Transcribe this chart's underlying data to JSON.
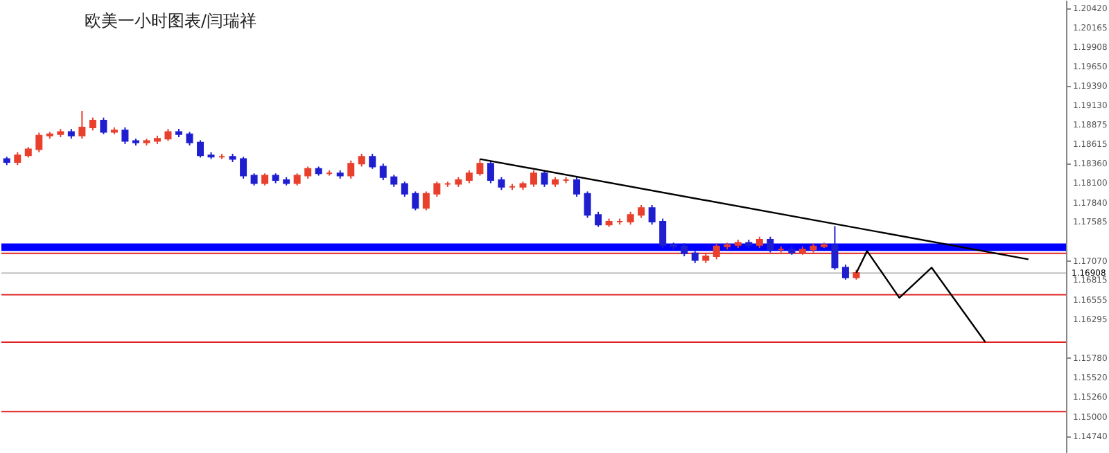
{
  "chart_data": {
    "type": "candlestick",
    "title": "欧美一小时图表/闫瑞祥",
    "categories": [
      null,
      null,
      null,
      null,
      null,
      null,
      null,
      null,
      null,
      null,
      null,
      null,
      null,
      null,
      null,
      null,
      null,
      null,
      null,
      null,
      null,
      null,
      null,
      null,
      null,
      null,
      null,
      null,
      null,
      null,
      null,
      null,
      null,
      null,
      null,
      null,
      null,
      null,
      null,
      null,
      null,
      null,
      null,
      null,
      null,
      null,
      null,
      null,
      null,
      null,
      null,
      null,
      null,
      null,
      null,
      null,
      null,
      null,
      null,
      null,
      null,
      null,
      null,
      null,
      null,
      null,
      null,
      null,
      null,
      null,
      null,
      null,
      null,
      null,
      null,
      null,
      null,
      null,
      null,
      null,
      null,
      null,
      null,
      null,
      null,
      null,
      null,
      null,
      null,
      null,
      null,
      null,
      null,
      null,
      null,
      null,
      null,
      null,
      null
    ],
    "ohlc": [
      [
        1.1842,
        1.1845,
        1.1834,
        1.1838
      ],
      [
        1.1838,
        1.1851,
        1.1834,
        1.1847
      ],
      [
        1.1847,
        1.1858,
        1.1844,
        1.1855
      ],
      [
        1.1855,
        1.1877,
        1.1851,
        1.1873
      ],
      [
        1.1873,
        1.1878,
        1.1869,
        1.1875
      ],
      [
        1.1875,
        1.1882,
        1.1871,
        1.1878
      ],
      [
        1.1878,
        1.1882,
        1.1869,
        1.1873
      ],
      [
        1.1873,
        1.1906,
        1.1869,
        1.1884
      ],
      [
        1.1884,
        1.1897,
        1.188,
        1.1893
      ],
      [
        1.1893,
        1.1897,
        1.1875,
        1.1878
      ],
      [
        1.1878,
        1.1884,
        1.1875,
        1.188
      ],
      [
        1.188,
        1.1884,
        1.1862,
        1.1866
      ],
      [
        1.1866,
        1.1869,
        1.186,
        1.1864
      ],
      [
        1.1864,
        1.1869,
        1.186,
        1.1866
      ],
      [
        1.1866,
        1.1873,
        1.1862,
        1.1869
      ],
      [
        1.1869,
        1.1882,
        1.1866,
        1.1878
      ],
      [
        1.1878,
        1.1882,
        1.1871,
        1.1875
      ],
      [
        1.1875,
        1.1878,
        1.186,
        1.1864
      ],
      [
        1.1864,
        1.1867,
        1.1844,
        1.1847
      ],
      [
        1.1847,
        1.1851,
        1.1842,
        1.1845
      ],
      [
        1.1845,
        1.1849,
        1.1842,
        1.1845
      ],
      [
        1.1845,
        1.1849,
        1.1838,
        1.1842
      ],
      [
        1.1842,
        1.1845,
        1.1816,
        1.182
      ],
      [
        1.182,
        1.1823,
        1.1807,
        1.181
      ],
      [
        1.181,
        1.1823,
        1.1807,
        1.182
      ],
      [
        1.182,
        1.1823,
        1.181,
        1.1814
      ],
      [
        1.1814,
        1.1818,
        1.1807,
        1.181
      ],
      [
        1.181,
        1.1823,
        1.1807,
        1.182
      ],
      [
        1.182,
        1.1832,
        1.1816,
        1.1829
      ],
      [
        1.1829,
        1.1832,
        1.182,
        1.1823
      ],
      [
        1.1823,
        1.1827,
        1.182,
        1.1823
      ],
      [
        1.1823,
        1.1827,
        1.1816,
        1.182
      ],
      [
        1.182,
        1.184,
        1.1816,
        1.1836
      ],
      [
        1.1836,
        1.1849,
        1.1832,
        1.1845
      ],
      [
        1.1845,
        1.1849,
        1.1829,
        1.1832
      ],
      [
        1.1832,
        1.1836,
        1.1814,
        1.1818
      ],
      [
        1.1818,
        1.1821,
        1.1805,
        1.1809
      ],
      [
        1.1809,
        1.1812,
        1.1792,
        1.1796
      ],
      [
        1.1796,
        1.1799,
        1.1774,
        1.1777
      ],
      [
        1.1777,
        1.1799,
        1.1774,
        1.1796
      ],
      [
        1.1796,
        1.1812,
        1.1792,
        1.1809
      ],
      [
        1.1809,
        1.1812,
        1.1805,
        1.1809
      ],
      [
        1.1809,
        1.1818,
        1.1805,
        1.1814
      ],
      [
        1.1814,
        1.1827,
        1.181,
        1.1823
      ],
      [
        1.1823,
        1.1842,
        1.182,
        1.1836
      ],
      [
        1.1836,
        1.184,
        1.181,
        1.1814
      ],
      [
        1.1814,
        1.1818,
        1.1801,
        1.1805
      ],
      [
        1.1805,
        1.1809,
        1.1801,
        1.1805
      ],
      [
        1.1805,
        1.1812,
        1.1801,
        1.1809
      ],
      [
        1.1809,
        1.1827,
        1.1805,
        1.1823
      ],
      [
        1.1823,
        1.1827,
        1.1805,
        1.1809
      ],
      [
        1.1809,
        1.1818,
        1.1805,
        1.1814
      ],
      [
        1.1814,
        1.1818,
        1.181,
        1.1814
      ],
      [
        1.1814,
        1.1818,
        1.1792,
        1.1796
      ],
      [
        1.1796,
        1.1799,
        1.1764,
        1.1768
      ],
      [
        1.1768,
        1.1772,
        1.1752,
        1.1755
      ],
      [
        1.1755,
        1.1763,
        1.1752,
        1.1759
      ],
      [
        1.1759,
        1.1763,
        1.1755,
        1.1759
      ],
      [
        1.1759,
        1.1772,
        1.1755,
        1.1768
      ],
      [
        1.1768,
        1.1781,
        1.1764,
        1.1777
      ],
      [
        1.1777,
        1.1781,
        1.1755,
        1.1759
      ],
      [
        1.1759,
        1.1763,
        1.1724,
        1.1728
      ],
      [
        1.1728,
        1.1731,
        1.1722,
        1.1726
      ],
      [
        1.1726,
        1.173,
        1.1713,
        1.1717
      ],
      [
        1.1717,
        1.172,
        1.1704,
        1.1708
      ],
      [
        1.1708,
        1.1717,
        1.1704,
        1.1713
      ],
      [
        1.1713,
        1.173,
        1.1709,
        1.1726
      ],
      [
        1.1726,
        1.1731,
        1.1722,
        1.1728
      ],
      [
        1.1728,
        1.1735,
        1.1724,
        1.1731
      ],
      [
        1.1731,
        1.1735,
        1.1724,
        1.1728
      ],
      [
        1.1728,
        1.1739,
        1.1724,
        1.1735
      ],
      [
        1.1735,
        1.1739,
        1.1718,
        1.1722
      ],
      [
        1.1722,
        1.1726,
        1.1718,
        1.1722
      ],
      [
        1.1722,
        1.1726,
        1.1715,
        1.1718
      ],
      [
        1.1718,
        1.1726,
        1.1715,
        1.1722
      ],
      [
        1.1722,
        1.173,
        1.1718,
        1.1726
      ],
      [
        1.1726,
        1.1731,
        1.1724,
        1.1728
      ],
      [
        1.1728,
        1.1753,
        1.1695,
        1.1698
      ],
      [
        1.1698,
        1.1702,
        1.1682,
        1.1685
      ],
      [
        1.1685,
        1.1695,
        1.1682,
        1.1691
      ],
      null,
      null,
      null,
      null,
      null,
      null,
      null,
      null,
      null,
      null,
      null,
      null,
      null,
      null,
      null,
      null,
      null,
      null,
      null
    ],
    "colors": [
      "#1f1fd0",
      "#e8402c",
      "#e8402c",
      "#e8402c",
      "#e8402c",
      "#e8402c",
      "#1f1fd0",
      "#e8402c",
      "#e8402c",
      "#1f1fd0",
      "#e8402c",
      "#1f1fd0",
      "#1f1fd0",
      "#e8402c",
      "#e8402c",
      "#e8402c",
      "#1f1fd0",
      "#1f1fd0",
      "#1f1fd0",
      "#1f1fd0",
      "#e8402c",
      "#1f1fd0",
      "#1f1fd0",
      "#1f1fd0",
      "#e8402c",
      "#1f1fd0",
      "#1f1fd0",
      "#e8402c",
      "#e8402c",
      "#1f1fd0",
      "#e8402c",
      "#1f1fd0",
      "#e8402c",
      "#e8402c",
      "#1f1fd0",
      "#1f1fd0",
      "#1f1fd0",
      "#1f1fd0",
      "#1f1fd0",
      "#e8402c",
      "#e8402c",
      "#e8402c",
      "#e8402c",
      "#e8402c",
      "#e8402c",
      "#1f1fd0",
      "#1f1fd0",
      "#e8402c",
      "#e8402c",
      "#e8402c",
      "#1f1fd0",
      "#e8402c",
      "#e8402c",
      "#1f1fd0",
      "#1f1fd0",
      "#1f1fd0",
      "#e8402c",
      "#e8402c",
      "#e8402c",
      "#e8402c",
      "#1f1fd0",
      "#1f1fd0",
      "#1f1fd0",
      "#1f1fd0",
      "#1f1fd0",
      "#e8402c",
      "#e8402c",
      "#e8402c",
      "#e8402c",
      "#1f1fd0",
      "#e8402c",
      "#1f1fd0",
      "#e8402c",
      "#1f1fd0",
      "#e8402c",
      "#e8402c",
      "#e8402c",
      "#1f1fd0",
      "#1f1fd0",
      "#e8402c",
      null,
      null,
      null,
      null,
      null,
      null,
      null,
      null,
      null,
      null,
      null,
      null,
      null,
      null,
      null,
      null,
      null,
      null,
      null
    ],
    "series": [
      {
        "type": "line",
        "color": "#000000",
        "values": [
          null,
          null,
          null,
          null,
          null,
          null,
          null,
          null,
          null,
          null,
          null,
          null,
          null,
          null,
          null,
          null,
          null,
          null,
          null,
          null,
          null,
          null,
          null,
          null,
          null,
          null,
          null,
          null,
          null,
          null,
          null,
          null,
          null,
          null,
          null,
          null,
          null,
          null,
          null,
          null,
          null,
          null,
          null,
          null,
          1.1842,
          null,
          null,
          null,
          null,
          null,
          null,
          null,
          null,
          null,
          null,
          null,
          null,
          null,
          null,
          null,
          null,
          null,
          null,
          null,
          null,
          null,
          null,
          null,
          null,
          null,
          null,
          null,
          null,
          null,
          null,
          null,
          null,
          null,
          null,
          null,
          null,
          null,
          null,
          null,
          null,
          null,
          null,
          null,
          null,
          null,
          null,
          null,
          null,
          null,
          null,
          1.1709,
          null,
          null,
          null
        ]
      },
      {
        "type": "line",
        "color": "#000000",
        "values": [
          null,
          null,
          null,
          null,
          null,
          null,
          null,
          null,
          null,
          null,
          null,
          null,
          null,
          null,
          null,
          null,
          null,
          null,
          null,
          null,
          null,
          null,
          null,
          null,
          null,
          null,
          null,
          null,
          null,
          null,
          null,
          null,
          null,
          null,
          null,
          null,
          null,
          null,
          null,
          null,
          null,
          null,
          null,
          null,
          null,
          null,
          null,
          null,
          null,
          null,
          null,
          null,
          null,
          null,
          null,
          null,
          null,
          null,
          null,
          null,
          null,
          null,
          null,
          null,
          null,
          null,
          null,
          null,
          null,
          null,
          null,
          null,
          null,
          null,
          null,
          null,
          null,
          null,
          null,
          1.1691,
          1.172,
          null,
          null,
          1.1658,
          null,
          null,
          1.1698,
          null,
          null,
          null,
          null,
          1.1599,
          null,
          null,
          null,
          null,
          null,
          null,
          null
        ]
      }
    ],
    "ylim": [
      1.1452,
      1.2053
    ],
    "yticks": [
      {
        "value": 1.2042,
        "label": "1.20420"
      },
      {
        "value": 1.20165,
        "label": "1.20165"
      },
      {
        "value": 1.19908,
        "label": "1.19908"
      },
      {
        "value": 1.1965,
        "label": "1.19650"
      },
      {
        "value": 1.1939,
        "label": "1.19390"
      },
      {
        "value": 1.1913,
        "label": "1.19130"
      },
      {
        "value": 1.18875,
        "label": "1.18875"
      },
      {
        "value": 1.18615,
        "label": "1.18615"
      },
      {
        "value": 1.1836,
        "label": "1.18360"
      },
      {
        "value": 1.181,
        "label": "1.18100"
      },
      {
        "value": 1.1784,
        "label": "1.17840"
      },
      {
        "value": 1.17585,
        "label": "1.17585"
      },
      {
        "value": 1.1707,
        "label": "1.17070"
      },
      {
        "value": 1.16815,
        "label": "1.16815"
      },
      {
        "value": 1.16555,
        "label": "1.16555"
      },
      {
        "value": 1.16295,
        "label": "1.16295"
      },
      {
        "value": 1.1578,
        "label": "1.15780"
      },
      {
        "value": 1.1552,
        "label": "1.15520"
      },
      {
        "value": 1.1526,
        "label": "1.15260"
      },
      {
        "value": 1.15,
        "label": "1.15000"
      },
      {
        "value": 1.1474,
        "label": "1.14740"
      }
    ],
    "bands": [
      {
        "axis": "y",
        "from": 1.172,
        "to": 1.173,
        "color": "#0000ff"
      }
    ],
    "ref_lines": [
      {
        "axis": "y",
        "value": 1.1717,
        "color": "#e02020"
      },
      {
        "axis": "y",
        "value": 1.1662,
        "color": "#e02020"
      },
      {
        "axis": "y",
        "value": 1.1599,
        "color": "#e02020"
      },
      {
        "axis": "y",
        "value": 1.1507,
        "color": "#e02020"
      },
      {
        "axis": "y",
        "value": 1.16908,
        "label": "1.16908",
        "color": "#c0c0c0"
      }
    ],
    "tick_labels": "y",
    "grid": false,
    "marker": "none"
  }
}
